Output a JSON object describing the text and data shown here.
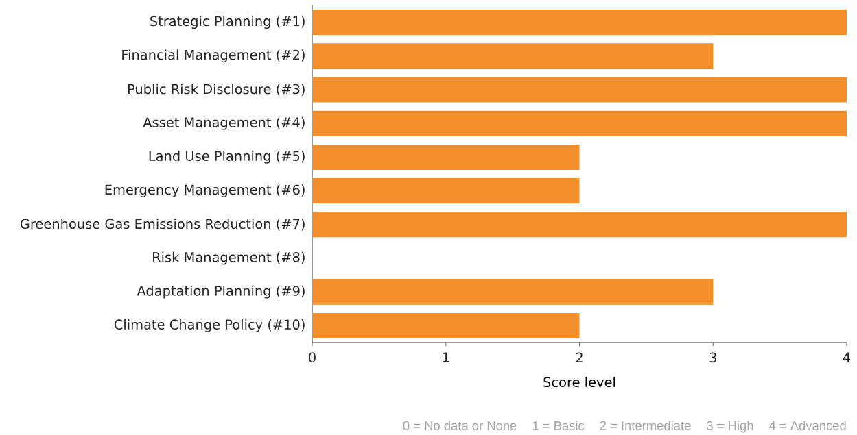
{
  "chart_data": {
    "type": "bar",
    "orientation": "horizontal",
    "categories": [
      "Strategic Planning (#1)",
      "Financial Management (#2)",
      "Public Risk Disclosure (#3)",
      "Asset Management (#4)",
      "Land Use Planning (#5)",
      "Emergency Management (#6)",
      "Greenhouse Gas Emissions Reduction (#7)",
      "Risk Management (#8)",
      "Adaptation Planning (#9)",
      "Climate Change Policy (#10)"
    ],
    "values": [
      4,
      3,
      4,
      4,
      2,
      2,
      4,
      0,
      3,
      2
    ],
    "color": "#f28e2b",
    "xlim": [
      0,
      4
    ],
    "xticks": [
      0,
      1,
      2,
      3,
      4
    ],
    "xlabel": "Score level",
    "grid": false,
    "annotations": [
      "0 = No data or None",
      "1 = Basic",
      "2 = Intermediate",
      "3 = High",
      "4 = Advanced"
    ]
  }
}
